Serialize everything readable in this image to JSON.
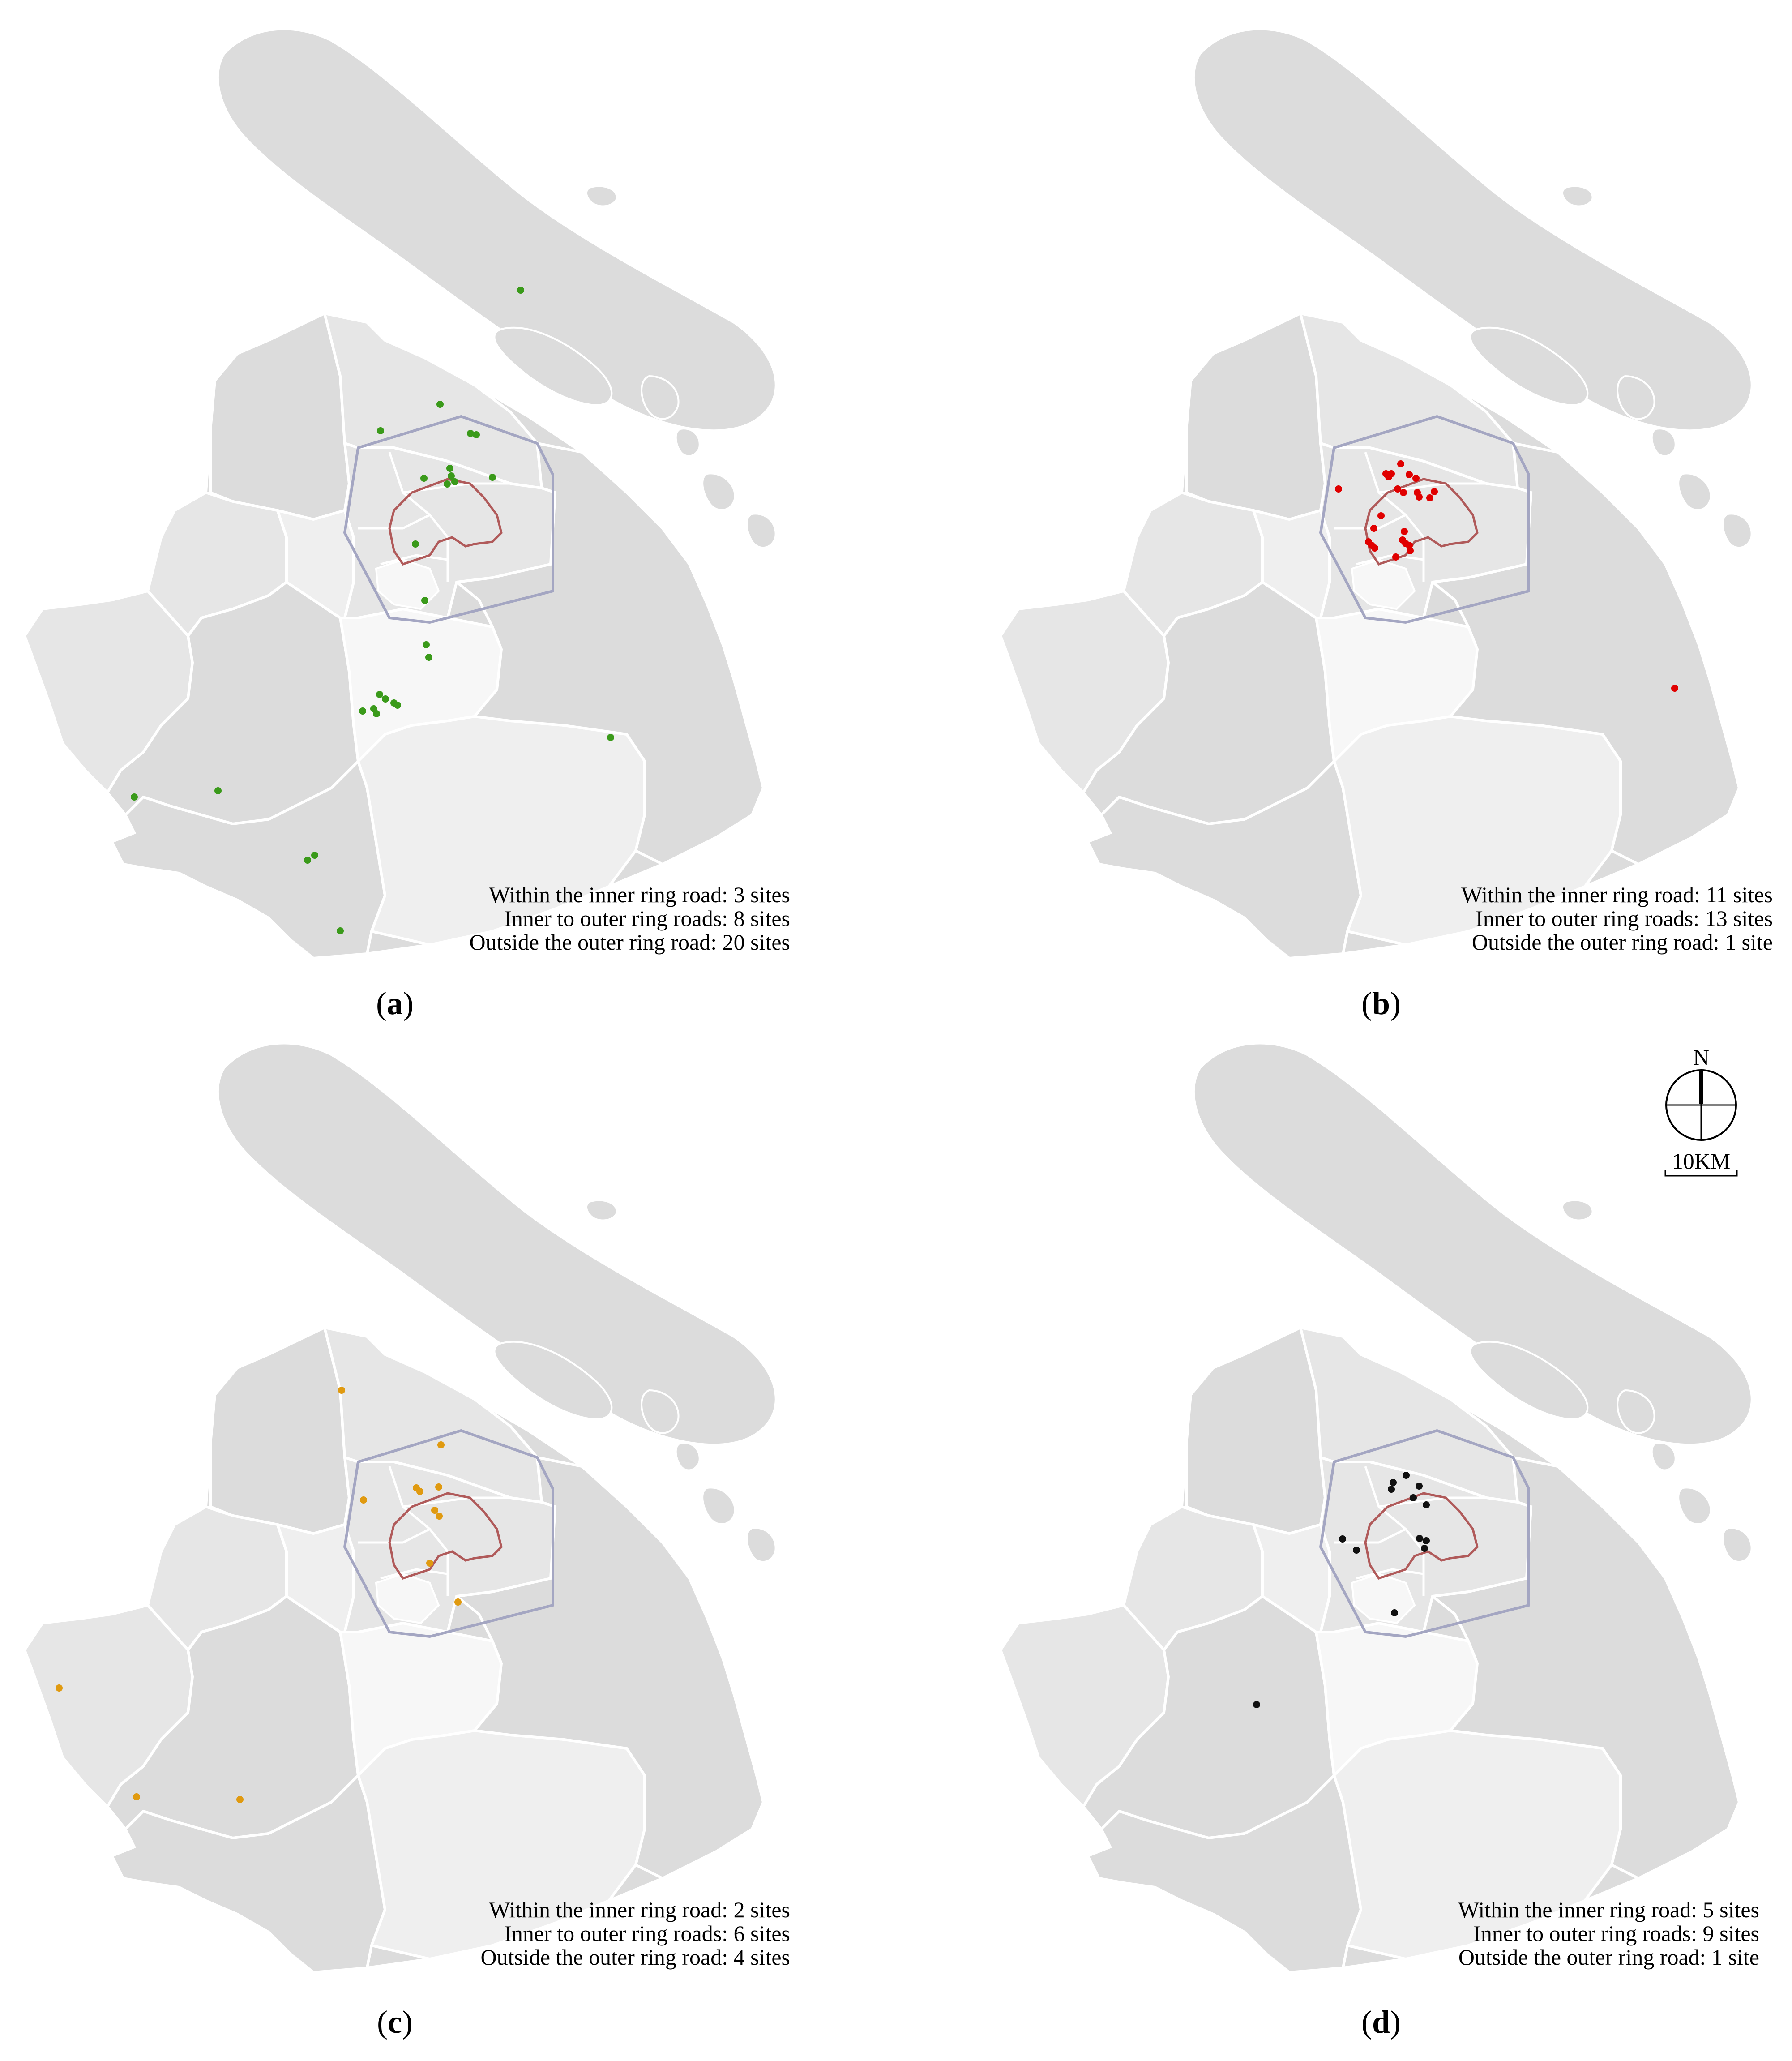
{
  "colors": {
    "land_dark": "#dcdcdc",
    "land_mid": "#e6e6e6",
    "land_light": "#efefef",
    "land_lightest": "#f7f7f7",
    "boundary": "#ffffff",
    "outer_ring": "#a4a6c2",
    "inner_ring": "#b05a5a"
  },
  "panels": [
    {
      "id": "a",
      "caption_open": "(",
      "caption_letter": "a",
      "caption_close": ")",
      "site_color": "#3a9a1a",
      "stats": [
        "Within the inner ring road: 3 sites",
        "Inner to outer ring roads: 8 sites",
        "Outside the outer ring road: 20 sites"
      ]
    },
    {
      "id": "b",
      "caption_open": "(",
      "caption_letter": "b",
      "caption_close": ")",
      "site_color": "#e00000",
      "stats": [
        "Within the inner ring road: 11 sites",
        "Inner to outer ring roads: 13 sites",
        "Outside the outer ring road: 1 site"
      ]
    },
    {
      "id": "c",
      "caption_open": "(",
      "caption_letter": "c",
      "caption_close": ")",
      "site_color": "#e09a10",
      "stats": [
        "Within the inner ring road: 2 sites",
        "Inner to outer ring roads: 6 sites",
        "Outside the outer ring road: 4 sites"
      ]
    },
    {
      "id": "d",
      "caption_open": "(",
      "caption_letter": "d",
      "caption_close": ")",
      "site_color": "#111111",
      "stats": [
        "Within the inner ring road: 5 sites",
        "Inner to outer ring roads: 9 sites",
        "Outside the outer ring road: 1 site"
      ]
    }
  ],
  "compass": {
    "north_label": "N",
    "scale_label": "10KM"
  }
}
